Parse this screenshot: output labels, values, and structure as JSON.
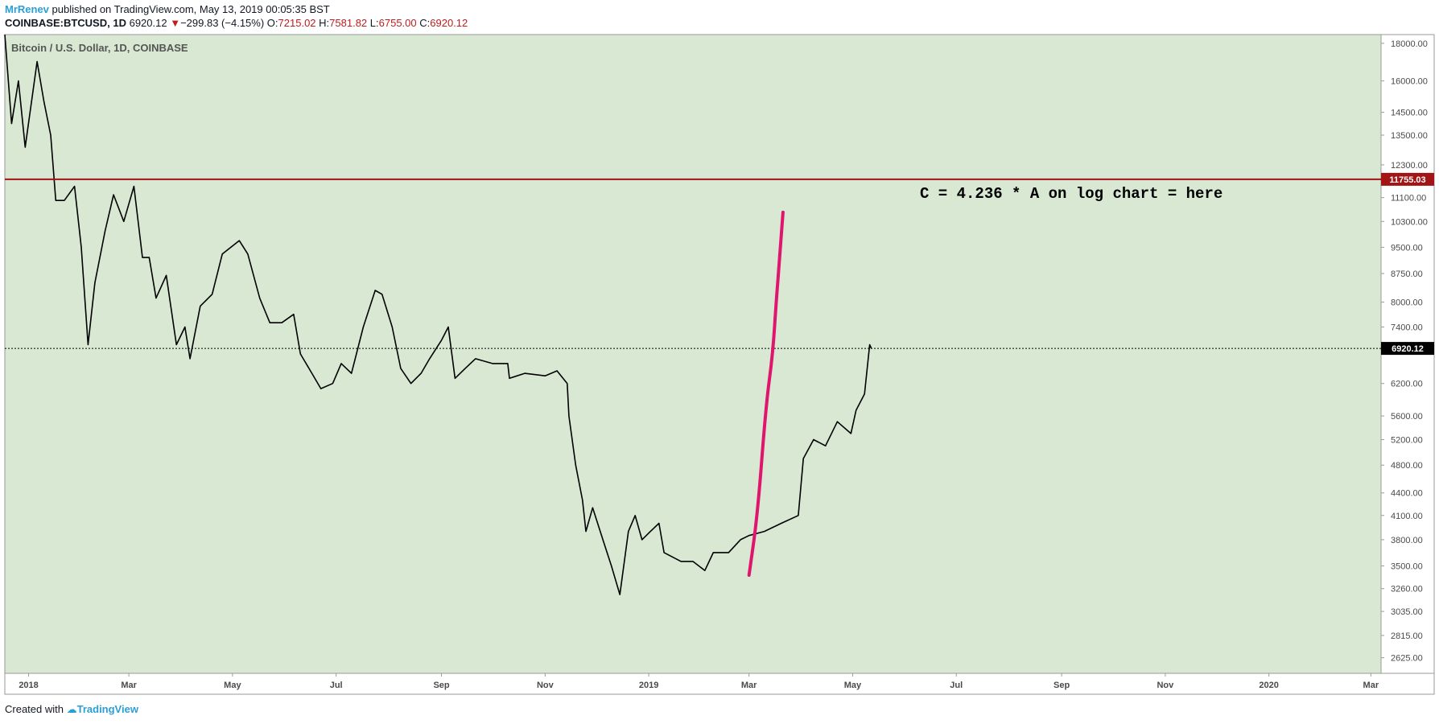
{
  "header": {
    "author": "MrRenev",
    "published_text": "published on TradingView.com, May 13, 2019 00:05:35 BST"
  },
  "ohlc": {
    "symbol": "COINBASE:BTCUSD, 1D",
    "last": "6920.12",
    "arrow": "▼",
    "change": "−299.83 (−4.15%)",
    "o_label": "O:",
    "o_value": "7215.02",
    "h_label": "H:",
    "h_value": "7581.82",
    "l_label": "L:",
    "l_value": "6755.00",
    "c_label": "C:",
    "c_value": "6920.12"
  },
  "footer": {
    "created_with": "Created with",
    "brand": "TradingView"
  },
  "colors": {
    "background": "#d8e8d3",
    "candle": "#000000",
    "resistance": "#a31515",
    "annotation": "#e0156e",
    "last_price_label": "#000000"
  },
  "chart_data": {
    "type": "line",
    "title": "Bitcoin / U.S. Dollar, 1D, COINBASE",
    "scale": "log",
    "ylim": [
      2500,
      18500
    ],
    "y_ticks": [
      2625,
      2815,
      3035,
      3260,
      3500,
      3800,
      4100,
      4400,
      4800,
      5200,
      5600,
      6200,
      7400,
      8000,
      8750,
      9500,
      10300,
      11100,
      12300,
      13500,
      14500,
      16000,
      18000
    ],
    "y_tick_labels": [
      "2625.00",
      "2815.00",
      "3035.00",
      "3260.00",
      "3500.00",
      "3800.00",
      "4100.00",
      "4400.00",
      "4800.00",
      "5200.00",
      "5600.00",
      "6200.00",
      "7400.00",
      "8000.00",
      "8750.00",
      "9500.00",
      "10300.00",
      "11100.00",
      "12300.00",
      "13500.00",
      "14500.00",
      "16000.00",
      "18000.00"
    ],
    "x_ticks": [
      "2018-01-01",
      "2018-03-01",
      "2018-05-01",
      "2018-07-01",
      "2018-09-01",
      "2018-11-01",
      "2019-01-01",
      "2019-03-01",
      "2019-05-01",
      "2019-07-01",
      "2019-09-01",
      "2019-11-01",
      "2020-01-01",
      "2020-03-01"
    ],
    "x_tick_labels": [
      "2018",
      "Mar",
      "May",
      "Jul",
      "Sep",
      "Nov",
      "2019",
      "Mar",
      "May",
      "Jul",
      "Sep",
      "Nov",
      "2020",
      "Mar"
    ],
    "xlim": [
      "2017-12-18",
      "2020-03-07"
    ],
    "series": [
      {
        "points": [
          [
            "2017-12-18",
            18500
          ],
          [
            "2017-12-22",
            14000
          ],
          [
            "2017-12-26",
            16000
          ],
          [
            "2017-12-30",
            13000
          ],
          [
            "2018-01-06",
            17000
          ],
          [
            "2018-01-10",
            15000
          ],
          [
            "2018-01-14",
            13500
          ],
          [
            "2018-01-17",
            11000
          ],
          [
            "2018-01-22",
            11000
          ],
          [
            "2018-01-28",
            11500
          ],
          [
            "2018-02-01",
            9500
          ],
          [
            "2018-02-05",
            7000
          ],
          [
            "2018-02-09",
            8500
          ],
          [
            "2018-02-15",
            10000
          ],
          [
            "2018-02-20",
            11200
          ],
          [
            "2018-02-26",
            10300
          ],
          [
            "2018-03-04",
            11500
          ],
          [
            "2018-03-09",
            9200
          ],
          [
            "2018-03-13",
            9200
          ],
          [
            "2018-03-17",
            8100
          ],
          [
            "2018-03-23",
            8700
          ],
          [
            "2018-03-29",
            7000
          ],
          [
            "2018-04-03",
            7400
          ],
          [
            "2018-04-06",
            6700
          ],
          [
            "2018-04-12",
            7900
          ],
          [
            "2018-04-19",
            8200
          ],
          [
            "2018-04-25",
            9300
          ],
          [
            "2018-05-05",
            9700
          ],
          [
            "2018-05-10",
            9300
          ],
          [
            "2018-05-17",
            8100
          ],
          [
            "2018-05-23",
            7500
          ],
          [
            "2018-05-30",
            7500
          ],
          [
            "2018-06-06",
            7700
          ],
          [
            "2018-06-10",
            6800
          ],
          [
            "2018-06-15",
            6500
          ],
          [
            "2018-06-22",
            6100
          ],
          [
            "2018-06-29",
            6200
          ],
          [
            "2018-07-04",
            6600
          ],
          [
            "2018-07-10",
            6400
          ],
          [
            "2018-07-17",
            7400
          ],
          [
            "2018-07-24",
            8300
          ],
          [
            "2018-07-28",
            8200
          ],
          [
            "2018-08-03",
            7400
          ],
          [
            "2018-08-08",
            6500
          ],
          [
            "2018-08-14",
            6200
          ],
          [
            "2018-08-20",
            6400
          ],
          [
            "2018-08-25",
            6700
          ],
          [
            "2018-09-01",
            7100
          ],
          [
            "2018-09-05",
            7400
          ],
          [
            "2018-09-09",
            6300
          ],
          [
            "2018-09-15",
            6500
          ],
          [
            "2018-09-21",
            6700
          ],
          [
            "2018-10-01",
            6600
          ],
          [
            "2018-10-10",
            6600
          ],
          [
            "2018-10-11",
            6300
          ],
          [
            "2018-10-20",
            6400
          ],
          [
            "2018-11-01",
            6350
          ],
          [
            "2018-11-08",
            6450
          ],
          [
            "2018-11-14",
            6200
          ],
          [
            "2018-11-15",
            5600
          ],
          [
            "2018-11-19",
            4800
          ],
          [
            "2018-11-23",
            4300
          ],
          [
            "2018-11-25",
            3900
          ],
          [
            "2018-11-29",
            4200
          ],
          [
            "2018-12-05",
            3800
          ],
          [
            "2018-12-10",
            3500
          ],
          [
            "2018-12-15",
            3200
          ],
          [
            "2018-12-20",
            3900
          ],
          [
            "2018-12-24",
            4100
          ],
          [
            "2018-12-28",
            3800
          ],
          [
            "2019-01-02",
            3900
          ],
          [
            "2019-01-07",
            4000
          ],
          [
            "2019-01-10",
            3650
          ],
          [
            "2019-01-20",
            3550
          ],
          [
            "2019-01-27",
            3550
          ],
          [
            "2019-02-03",
            3450
          ],
          [
            "2019-02-08",
            3650
          ],
          [
            "2019-02-17",
            3650
          ],
          [
            "2019-02-24",
            3800
          ],
          [
            "2019-03-01",
            3850
          ],
          [
            "2019-03-10",
            3900
          ],
          [
            "2019-03-20",
            4000
          ],
          [
            "2019-03-30",
            4100
          ],
          [
            "2019-04-02",
            4900
          ],
          [
            "2019-04-08",
            5200
          ],
          [
            "2019-04-15",
            5100
          ],
          [
            "2019-04-22",
            5500
          ],
          [
            "2019-04-30",
            5300
          ],
          [
            "2019-05-03",
            5700
          ],
          [
            "2019-05-08",
            6000
          ],
          [
            "2019-05-11",
            7000
          ],
          [
            "2019-05-12",
            6920
          ]
        ]
      }
    ],
    "horizontal_lines": [
      {
        "value": 11755.03,
        "label": "11755.03",
        "style": "solid"
      },
      {
        "value": 6920.12,
        "label": "6920.12",
        "style": "dotted"
      }
    ],
    "annotations": [
      {
        "text": "C = 4.236 * A on log chart = here"
      }
    ],
    "drawings": [
      {
        "type": "curve",
        "points": [
          [
            "2019-03-01",
            3400
          ],
          [
            "2019-03-06",
            4100
          ],
          [
            "2019-03-11",
            5800
          ],
          [
            "2019-03-15",
            6800
          ],
          [
            "2019-03-17",
            8000
          ],
          [
            "2019-03-19",
            9200
          ],
          [
            "2019-03-21",
            10600
          ]
        ]
      }
    ],
    "grid": false,
    "legend": "none"
  }
}
